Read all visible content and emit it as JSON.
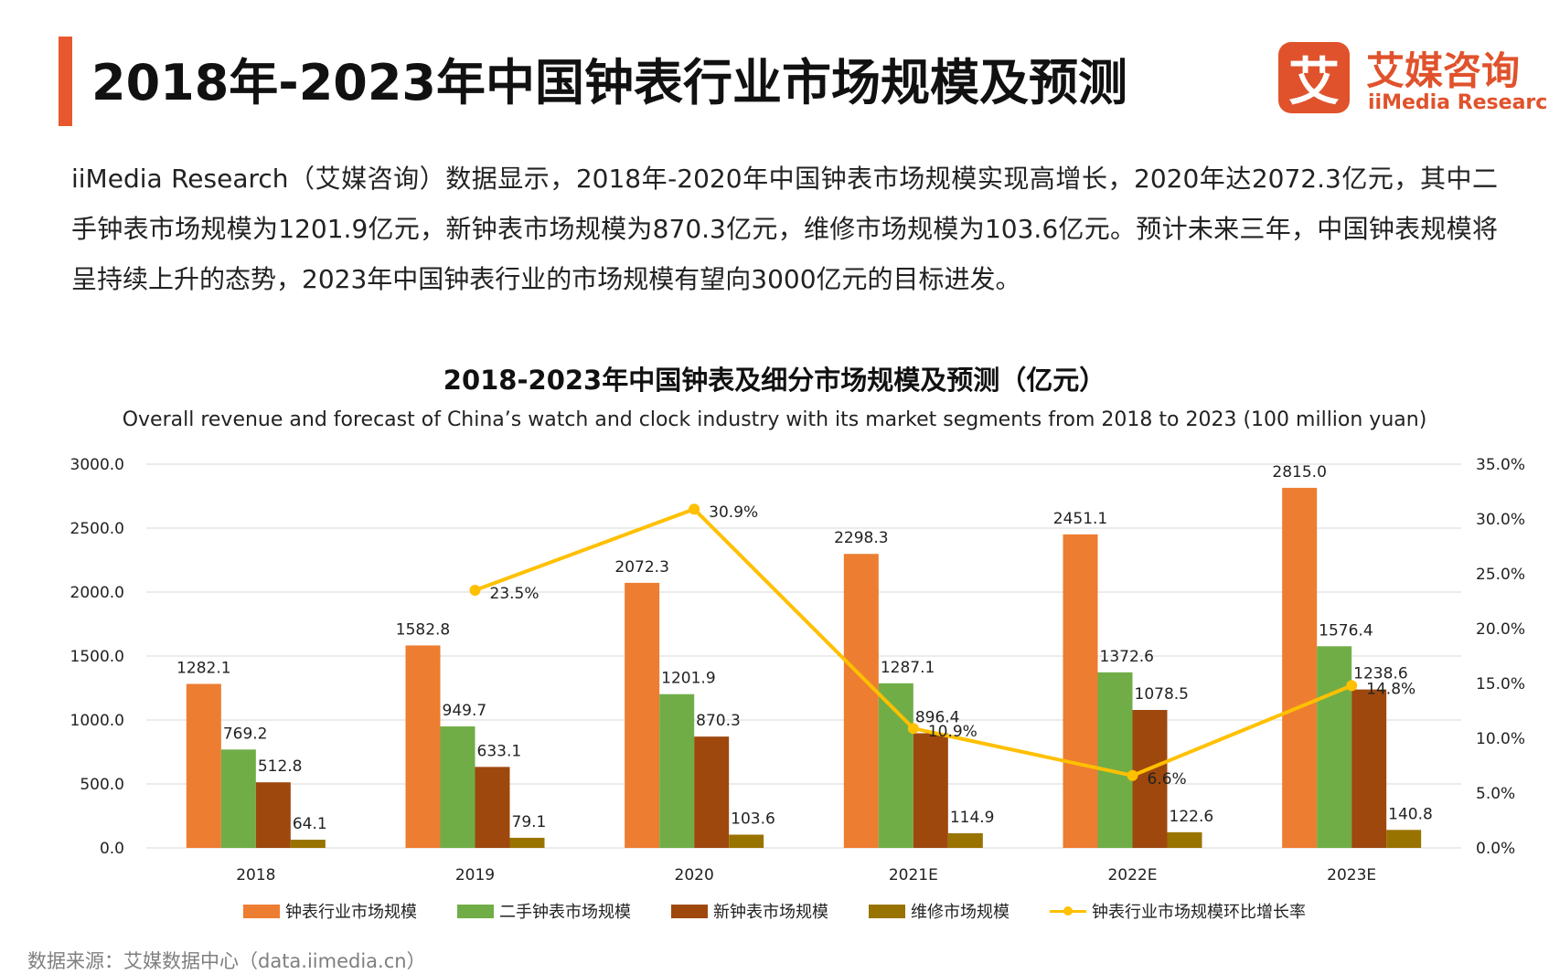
{
  "page": {
    "title": "2018年-2023年中国钟表行业市场规模及预测",
    "logo_mark": "艾",
    "logo_cn": "艾媒咨询",
    "logo_en": "iiMedia Research",
    "description": "iiMedia Research（艾媒咨询）数据显示，2018年-2020年中国钟表市场规模实现高增长，2020年达2072.3亿元，其中二手钟表市场规模为1201.9亿元，新钟表市场规模为870.3亿元，维修市场规模为103.6亿元。预计未来三年，中国钟表规模将呈持续上升的态势，2023年中国钟表行业的市场规模有望向3000亿元的目标进发。",
    "source": "数据来源：艾媒数据中心（data.iimedia.cn）",
    "accent_color": "#e8582e"
  },
  "chart_data": {
    "type": "bar",
    "title": "2018-2023年中国钟表及细分市场规模及预测（亿元）",
    "subtitle": "Overall revenue and forecast of China’s watch and clock industry with its market segments from 2018 to 2023 (100 million yuan)",
    "categories": [
      "2018",
      "2019",
      "2020",
      "2021E",
      "2022E",
      "2023E"
    ],
    "y_left": {
      "min": 0,
      "max": 3000,
      "ticks": [
        "0.0",
        "500.0",
        "1000.0",
        "1500.0",
        "2000.0",
        "2500.0",
        "3000.0"
      ]
    },
    "y_right": {
      "min": 0,
      "max": 35,
      "ticks": [
        "0.0%",
        "5.0%",
        "10.0%",
        "15.0%",
        "20.0%",
        "25.0%",
        "30.0%",
        "35.0%"
      ]
    },
    "grid": true,
    "legend_position": "bottom",
    "series": [
      {
        "name": "钟表行业市场规模",
        "type": "bar",
        "color": "#ed7d31",
        "values": [
          1282.1,
          1582.8,
          2072.3,
          2298.3,
          2451.1,
          2815.0
        ],
        "labels": [
          "1282.1",
          "1582.8",
          "2072.3",
          "2298.3",
          "2451.1",
          "2815.0"
        ]
      },
      {
        "name": "二手钟表市场规模",
        "type": "bar",
        "color": "#70ad47",
        "values": [
          769.2,
          949.7,
          1201.9,
          1287.1,
          1372.6,
          1576.4
        ],
        "labels": [
          "769.2",
          "949.7",
          "1201.9",
          "1287.1",
          "1372.6",
          "1576.4"
        ]
      },
      {
        "name": "新钟表市场规模",
        "type": "bar",
        "color": "#9e480e",
        "values": [
          512.8,
          633.1,
          870.3,
          896.4,
          1078.5,
          1238.6
        ],
        "labels": [
          "512.8",
          "633.1",
          "870.3",
          "896.4",
          "1078.5",
          "1238.6"
        ]
      },
      {
        "name": "维修市场规模",
        "type": "bar",
        "color": "#997300",
        "values": [
          64.1,
          79.1,
          103.6,
          114.9,
          122.6,
          140.8
        ],
        "labels": [
          "64.1",
          "79.1",
          "103.6",
          "114.9",
          "122.6",
          "140.8"
        ]
      },
      {
        "name": "钟表行业市场规模环比增长率",
        "type": "line",
        "axis": "right",
        "color": "#ffc000",
        "values": [
          null,
          23.5,
          30.9,
          10.9,
          6.6,
          14.8
        ],
        "labels": [
          "",
          "23.5%",
          "30.9%",
          "10.9%",
          "6.6%",
          "14.8%"
        ]
      }
    ]
  }
}
